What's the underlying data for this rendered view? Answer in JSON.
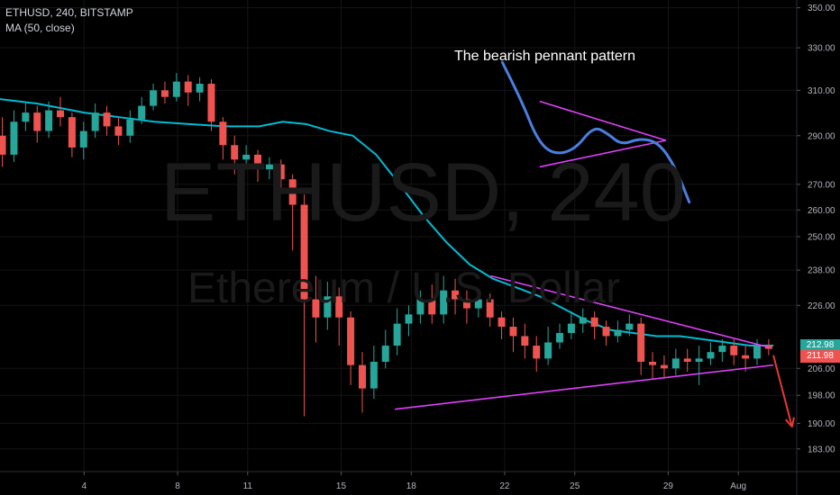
{
  "legend": {
    "symbol_line": "ETHUSD, 240, BITSTAMP",
    "indicator_line": "MA (50, close)"
  },
  "watermark": {
    "symbol": "ETHUSD, 240",
    "description": "Ethereum / U.S. Dollar"
  },
  "annotation": {
    "text": "The bearish pennant pattern"
  },
  "colors": {
    "background": "#000000",
    "up_candle": "#26a69a",
    "down_candle": "#ef5350",
    "ma_line": "#00bcd4",
    "pennant_lines": "#e040fb",
    "sketch_line": "#4a7fe0",
    "arrow": "#e53935",
    "axis_text": "#b2b5be",
    "grid": "#141414"
  },
  "chart_data": {
    "type": "candlestick",
    "title": "",
    "ylim": [
      177,
      354
    ],
    "yscale": "log",
    "y_ticks": [
      350,
      330,
      310,
      290,
      270,
      260,
      250,
      238,
      226,
      206,
      198,
      190,
      183
    ],
    "x_ticks": [
      "4",
      "8",
      "11",
      "15",
      "18",
      "22",
      "25",
      "29",
      "Aug"
    ],
    "x_tick_positions": [
      0,
      4,
      7,
      11,
      14,
      18,
      21,
      25,
      28
    ],
    "x_range_days": [
      -3.6,
      30.5
    ],
    "last_price_labels": [
      {
        "value": 212.98,
        "text": "212.98",
        "color": "#26a69a"
      },
      {
        "value": 211.98,
        "text": "211.98",
        "color": "#ef5350"
      }
    ],
    "ma50": [
      [
        -3.6,
        306
      ],
      [
        -2,
        304
      ],
      [
        0,
        300
      ],
      [
        1.5,
        298
      ],
      [
        3,
        296
      ],
      [
        4.5,
        295
      ],
      [
        6,
        294
      ],
      [
        7.5,
        294
      ],
      [
        8.5,
        296
      ],
      [
        9.5,
        295
      ],
      [
        10.5,
        292
      ],
      [
        11.5,
        290
      ],
      [
        12.5,
        282
      ],
      [
        13.5,
        270
      ],
      [
        14.5,
        258
      ],
      [
        15.5,
        248
      ],
      [
        16.5,
        240
      ],
      [
        17.5,
        235
      ],
      [
        18.5,
        232
      ],
      [
        19.5,
        229
      ],
      [
        20.5,
        225
      ],
      [
        21.5,
        221
      ],
      [
        22.5,
        218
      ],
      [
        23.5,
        217
      ],
      [
        24.5,
        216
      ],
      [
        25.5,
        216
      ],
      [
        26.5,
        215
      ],
      [
        27.5,
        214
      ],
      [
        28.5,
        213
      ],
      [
        29.5,
        213
      ]
    ],
    "candles": [
      [
        290,
        282,
        298,
        277
      ],
      [
        282,
        296,
        301,
        279
      ],
      [
        296,
        300,
        305,
        292
      ],
      [
        300,
        292,
        303,
        287
      ],
      [
        292,
        301,
        305,
        289
      ],
      [
        301,
        298,
        307,
        294
      ],
      [
        298,
        285,
        300,
        281
      ],
      [
        285,
        292,
        296,
        280
      ],
      [
        292,
        300,
        304,
        289
      ],
      [
        300,
        294,
        303,
        290
      ],
      [
        294,
        290,
        298,
        286
      ],
      [
        290,
        297,
        301,
        287
      ],
      [
        297,
        303,
        307,
        295
      ],
      [
        303,
        310,
        313,
        301
      ],
      [
        310,
        307,
        314,
        304
      ],
      [
        307,
        314,
        318,
        305
      ],
      [
        314,
        309,
        317,
        303
      ],
      [
        309,
        313,
        316,
        305
      ],
      [
        313,
        296,
        315,
        292
      ],
      [
        296,
        286,
        298,
        280
      ],
      [
        286,
        280,
        290,
        274
      ],
      [
        280,
        282,
        286,
        276
      ],
      [
        282,
        276,
        284,
        271
      ],
      [
        276,
        278,
        281,
        272
      ],
      [
        278,
        272,
        280,
        268
      ],
      [
        272,
        262,
        274,
        245
      ],
      [
        262,
        228,
        266,
        192
      ],
      [
        228,
        222,
        236,
        214
      ],
      [
        222,
        229,
        234,
        218
      ],
      [
        229,
        222,
        232,
        213
      ],
      [
        222,
        207,
        224,
        201
      ],
      [
        207,
        200,
        211,
        193
      ],
      [
        200,
        208,
        213,
        197
      ],
      [
        208,
        213,
        218,
        206
      ],
      [
        213,
        220,
        225,
        210
      ],
      [
        220,
        223,
        226,
        216
      ],
      [
        223,
        228,
        231,
        220
      ],
      [
        228,
        223,
        233,
        220
      ],
      [
        223,
        231,
        236,
        220
      ],
      [
        231,
        228,
        235,
        223
      ],
      [
        228,
        225,
        231,
        220
      ],
      [
        225,
        228,
        231,
        222
      ],
      [
        228,
        222,
        230,
        219
      ],
      [
        222,
        219,
        224,
        215
      ],
      [
        219,
        216,
        222,
        211
      ],
      [
        216,
        213,
        220,
        209
      ],
      [
        213,
        209,
        216,
        205
      ],
      [
        209,
        214,
        219,
        207
      ],
      [
        214,
        217,
        220,
        212
      ],
      [
        217,
        220,
        224,
        215
      ],
      [
        220,
        222,
        225,
        217
      ],
      [
        222,
        219,
        224,
        215
      ],
      [
        219,
        216,
        221,
        213
      ],
      [
        216,
        218,
        221,
        214
      ],
      [
        218,
        220,
        223,
        216
      ],
      [
        220,
        208,
        222,
        204
      ],
      [
        208,
        207,
        211,
        203
      ],
      [
        207,
        206,
        210,
        203
      ],
      [
        206,
        209,
        212,
        204
      ],
      [
        209,
        208,
        212,
        205
      ],
      [
        208,
        209,
        213,
        201
      ],
      [
        209,
        211,
        214,
        207
      ],
      [
        211,
        213,
        215,
        208
      ],
      [
        213,
        210,
        215,
        207
      ],
      [
        210,
        209,
        213,
        205
      ],
      [
        209,
        213,
        215,
        207
      ],
      [
        213,
        212,
        215,
        210
      ]
    ],
    "pennant_main": {
      "upper": [
        [
          17.4,
          236
        ],
        [
          29.3,
          212.5
        ]
      ],
      "lower": [
        [
          13.3,
          194
        ],
        [
          29.5,
          207
        ]
      ]
    },
    "sketch": {
      "line": [
        [
          17.9,
          323
        ],
        [
          18.7,
          306
        ],
        [
          19.4,
          288
        ],
        [
          20.1,
          282
        ],
        [
          21.0,
          284
        ],
        [
          21.8,
          294
        ],
        [
          22.4,
          291
        ],
        [
          23.0,
          286
        ],
        [
          23.8,
          289
        ],
        [
          24.6,
          287
        ],
        [
          25.3,
          277
        ],
        [
          25.9,
          263
        ]
      ],
      "pennant_upper": [
        [
          19.5,
          305
        ],
        [
          24.9,
          288
        ]
      ],
      "pennant_lower": [
        [
          19.5,
          277
        ],
        [
          24.9,
          288
        ]
      ]
    },
    "arrow": [
      [
        29.5,
        210
      ],
      [
        30.3,
        189
      ]
    ]
  }
}
